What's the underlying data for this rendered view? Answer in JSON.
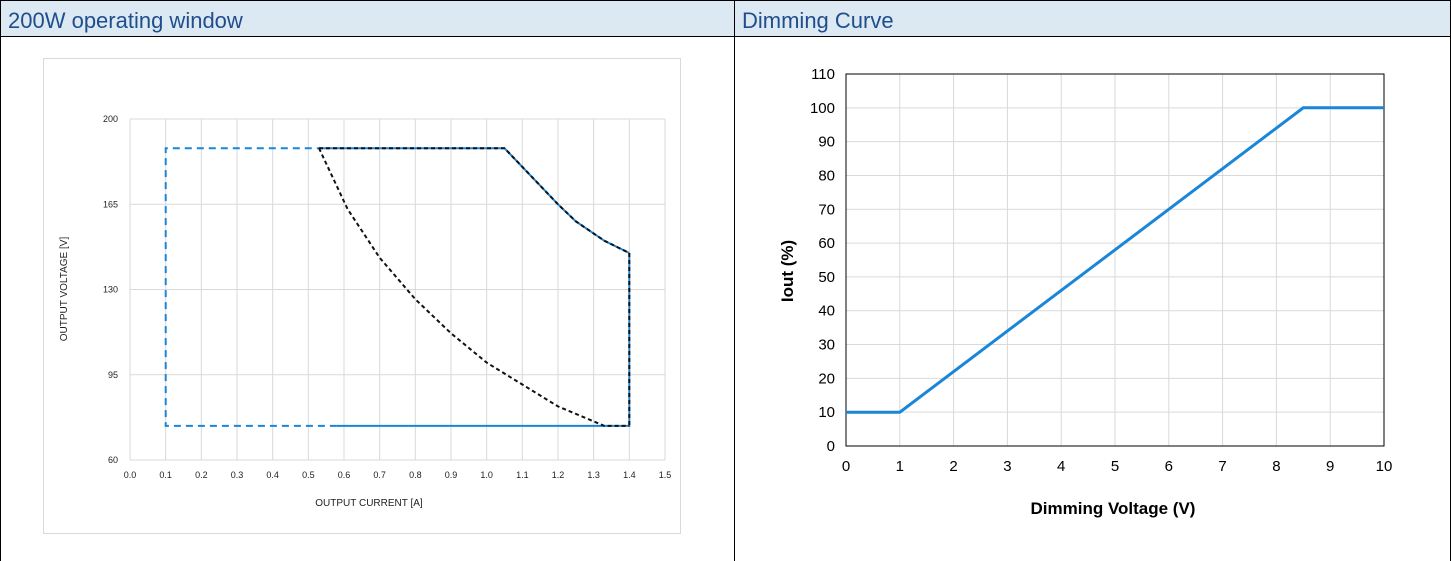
{
  "panels": [
    {
      "title": "200W operating window"
    },
    {
      "title": "Dimming Curve"
    }
  ],
  "colors": {
    "header_bg": "#dce8f2",
    "title_text": "#1f4e8c",
    "blue_line": "#1a86d8",
    "black_dashed": "#000000",
    "grid": "#d9d9d9"
  },
  "chart_data": [
    {
      "type": "line",
      "xlabel": "OUTPUT CURRENT [A]",
      "ylabel": "OUTPUT VOLTAGE [V]",
      "xlim": [
        0.0,
        1.5
      ],
      "ylim": [
        60,
        200
      ],
      "x_ticks": [
        "0.0",
        "0.1",
        "0.2",
        "0.3",
        "0.4",
        "0.5",
        "0.6",
        "0.7",
        "0.8",
        "0.9",
        "1.0",
        "1.1",
        "1.2",
        "1.3",
        "1.4",
        "1.5"
      ],
      "y_ticks": [
        "60",
        "95",
        "130",
        "165",
        "200"
      ],
      "grid": true,
      "series": [
        {
          "style": "blue-dashed",
          "x": [
            0.58,
            0.1,
            0.1,
            0.53
          ],
          "y": [
            74,
            74,
            188,
            188
          ]
        },
        {
          "style": "blue-solid",
          "x": [
            0.58,
            1.4,
            1.4
          ],
          "y": [
            74,
            74,
            145
          ]
        },
        {
          "style": "blue-solid",
          "x": [
            0.53,
            1.05,
            1.2,
            1.25,
            1.33,
            1.4
          ],
          "y": [
            188,
            188,
            165,
            158,
            150,
            145
          ]
        },
        {
          "style": "black-dashed",
          "x": [
            0.53,
            0.61,
            0.7,
            0.8,
            0.9,
            1.0,
            1.1,
            1.2,
            1.33,
            1.4
          ],
          "y": [
            188,
            163,
            143,
            126,
            112,
            100,
            91,
            82,
            74,
            74
          ]
        },
        {
          "style": "black-dashed",
          "x": [
            0.53,
            1.05,
            1.2,
            1.25,
            1.33,
            1.4,
            1.4
          ],
          "y": [
            188,
            188,
            165,
            158,
            150,
            145,
            74
          ]
        }
      ]
    },
    {
      "type": "line",
      "xlabel": "Dimming Voltage (V)",
      "ylabel": "Iout (%)",
      "xlim": [
        0,
        10
      ],
      "ylim": [
        0,
        110
      ],
      "x_ticks": [
        "0",
        "1",
        "2",
        "3",
        "4",
        "5",
        "6",
        "7",
        "8",
        "9",
        "10"
      ],
      "y_ticks": [
        "0",
        "10",
        "20",
        "30",
        "40",
        "50",
        "60",
        "70",
        "80",
        "90",
        "100",
        "110"
      ],
      "grid": true,
      "series": [
        {
          "style": "blue-solid",
          "x": [
            0,
            1,
            8,
            8.5,
            10
          ],
          "y": [
            10,
            10,
            94,
            100,
            100
          ]
        }
      ]
    }
  ]
}
